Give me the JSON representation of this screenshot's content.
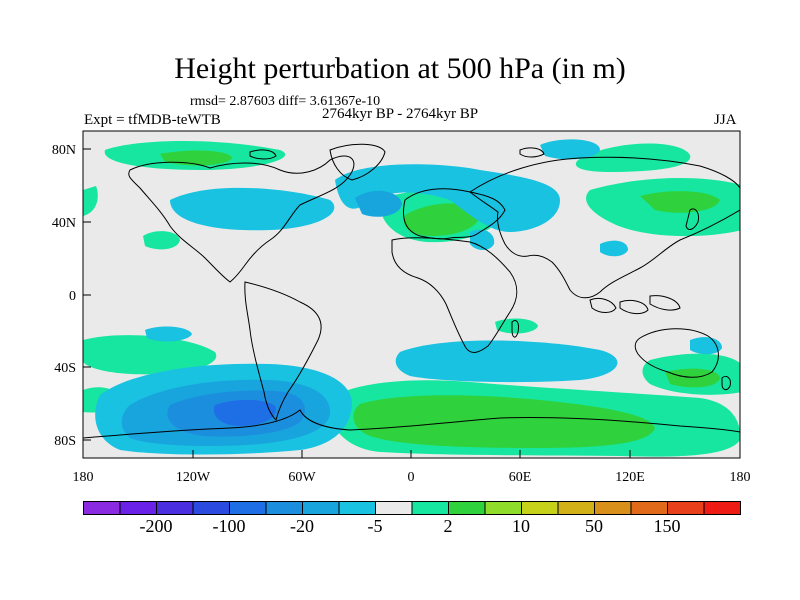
{
  "title": "Height perturbation at 500 hPa (in m)",
  "stats": "rmsd= 2.87603 diff= 3.61367e-10",
  "experiment": "Expt = tfMDB-teWTB",
  "period": "2764kyr BP - 2764kyr BP",
  "season": "JJA",
  "axes": {
    "x_ticks": [
      "180",
      "120W",
      "60W",
      "0",
      "60E",
      "120E",
      "180"
    ],
    "y_ticks": [
      "80N",
      "40N",
      "0",
      "40S",
      "80S"
    ]
  },
  "colorbar": {
    "colors": [
      "#8a2be2",
      "#6a22e8",
      "#4a2fe0",
      "#2a4ae0",
      "#1e6ee6",
      "#1c8ede",
      "#18a4dc",
      "#19c2e0",
      "#eaeaea",
      "#17e6a0",
      "#2fd23c",
      "#8fdc2a",
      "#c6d21a",
      "#d2b018",
      "#d8901a",
      "#e06a1a",
      "#e8401a",
      "#ee1a14"
    ],
    "labels": [
      "-200",
      "-100",
      "-20",
      "-5",
      "2",
      "10",
      "50",
      "150"
    ]
  }
}
